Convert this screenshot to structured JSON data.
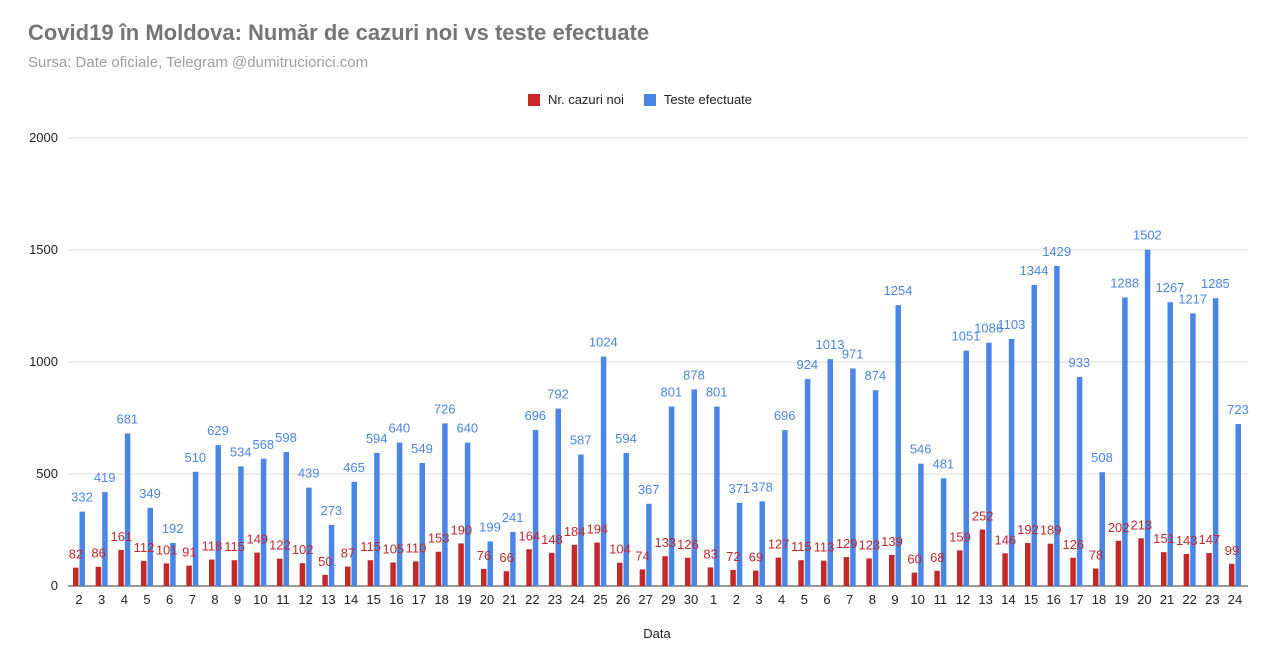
{
  "title": "Covid19 în Moldova: Număr de cazuri noi vs teste efectuate",
  "subtitle": "Sursa: Date oficiale, Telegram @dumitruciorici.com",
  "colors": {
    "cases": "#c62828",
    "tests": "#4a86e8",
    "grid": "#dddddd",
    "axis": "#333333"
  },
  "chart_data": {
    "type": "bar",
    "title": "Covid19 în Moldova: Număr de cazuri noi vs teste efectuate",
    "xlabel": "Data",
    "ylabel": "",
    "ylim": [
      0,
      2000
    ],
    "yticks": [
      0,
      500,
      1000,
      1500,
      2000
    ],
    "grid": true,
    "legend_position": "top-center",
    "categories": [
      "2",
      "3",
      "4",
      "5",
      "6",
      "7",
      "8",
      "9",
      "10",
      "11",
      "12",
      "13",
      "14",
      "15",
      "16",
      "17",
      "18",
      "19",
      "20",
      "21",
      "22",
      "23",
      "24",
      "25",
      "26",
      "27",
      "29",
      "30",
      "1",
      "2",
      "3",
      "4",
      "5",
      "6",
      "7",
      "8",
      "9",
      "10",
      "11",
      "12",
      "13",
      "14",
      "15",
      "16",
      "17",
      "18",
      "19",
      "20",
      "21",
      "22",
      "23",
      "24"
    ],
    "series": [
      {
        "name": "Nr. cazuri noi",
        "color": "#c62828",
        "values": [
          82,
          86,
          161,
          112,
          101,
          91,
          118,
          115,
          149,
          122,
          102,
          50,
          87,
          115,
          105,
          110,
          153,
          190,
          76,
          66,
          164,
          148,
          184,
          194,
          104,
          74,
          133,
          126,
          83,
          72,
          69,
          127,
          115,
          113,
          129,
          123,
          139,
          60,
          68,
          159,
          252,
          146,
          192,
          189,
          126,
          78,
          202,
          213,
          151,
          143,
          147,
          99
        ]
      },
      {
        "name": "Teste efectuate",
        "color": "#4a86e8",
        "values": [
          332,
          419,
          681,
          349,
          192,
          510,
          629,
          534,
          568,
          598,
          439,
          273,
          465,
          594,
          640,
          549,
          726,
          640,
          199,
          241,
          696,
          792,
          587,
          1024,
          594,
          367,
          801,
          878,
          801,
          371,
          378,
          696,
          924,
          1013,
          971,
          874,
          1254,
          546,
          481,
          1051,
          1086,
          1103,
          1344,
          1429,
          933,
          508,
          1288,
          1502,
          1267,
          1217,
          1285,
          723
        ]
      }
    ]
  }
}
